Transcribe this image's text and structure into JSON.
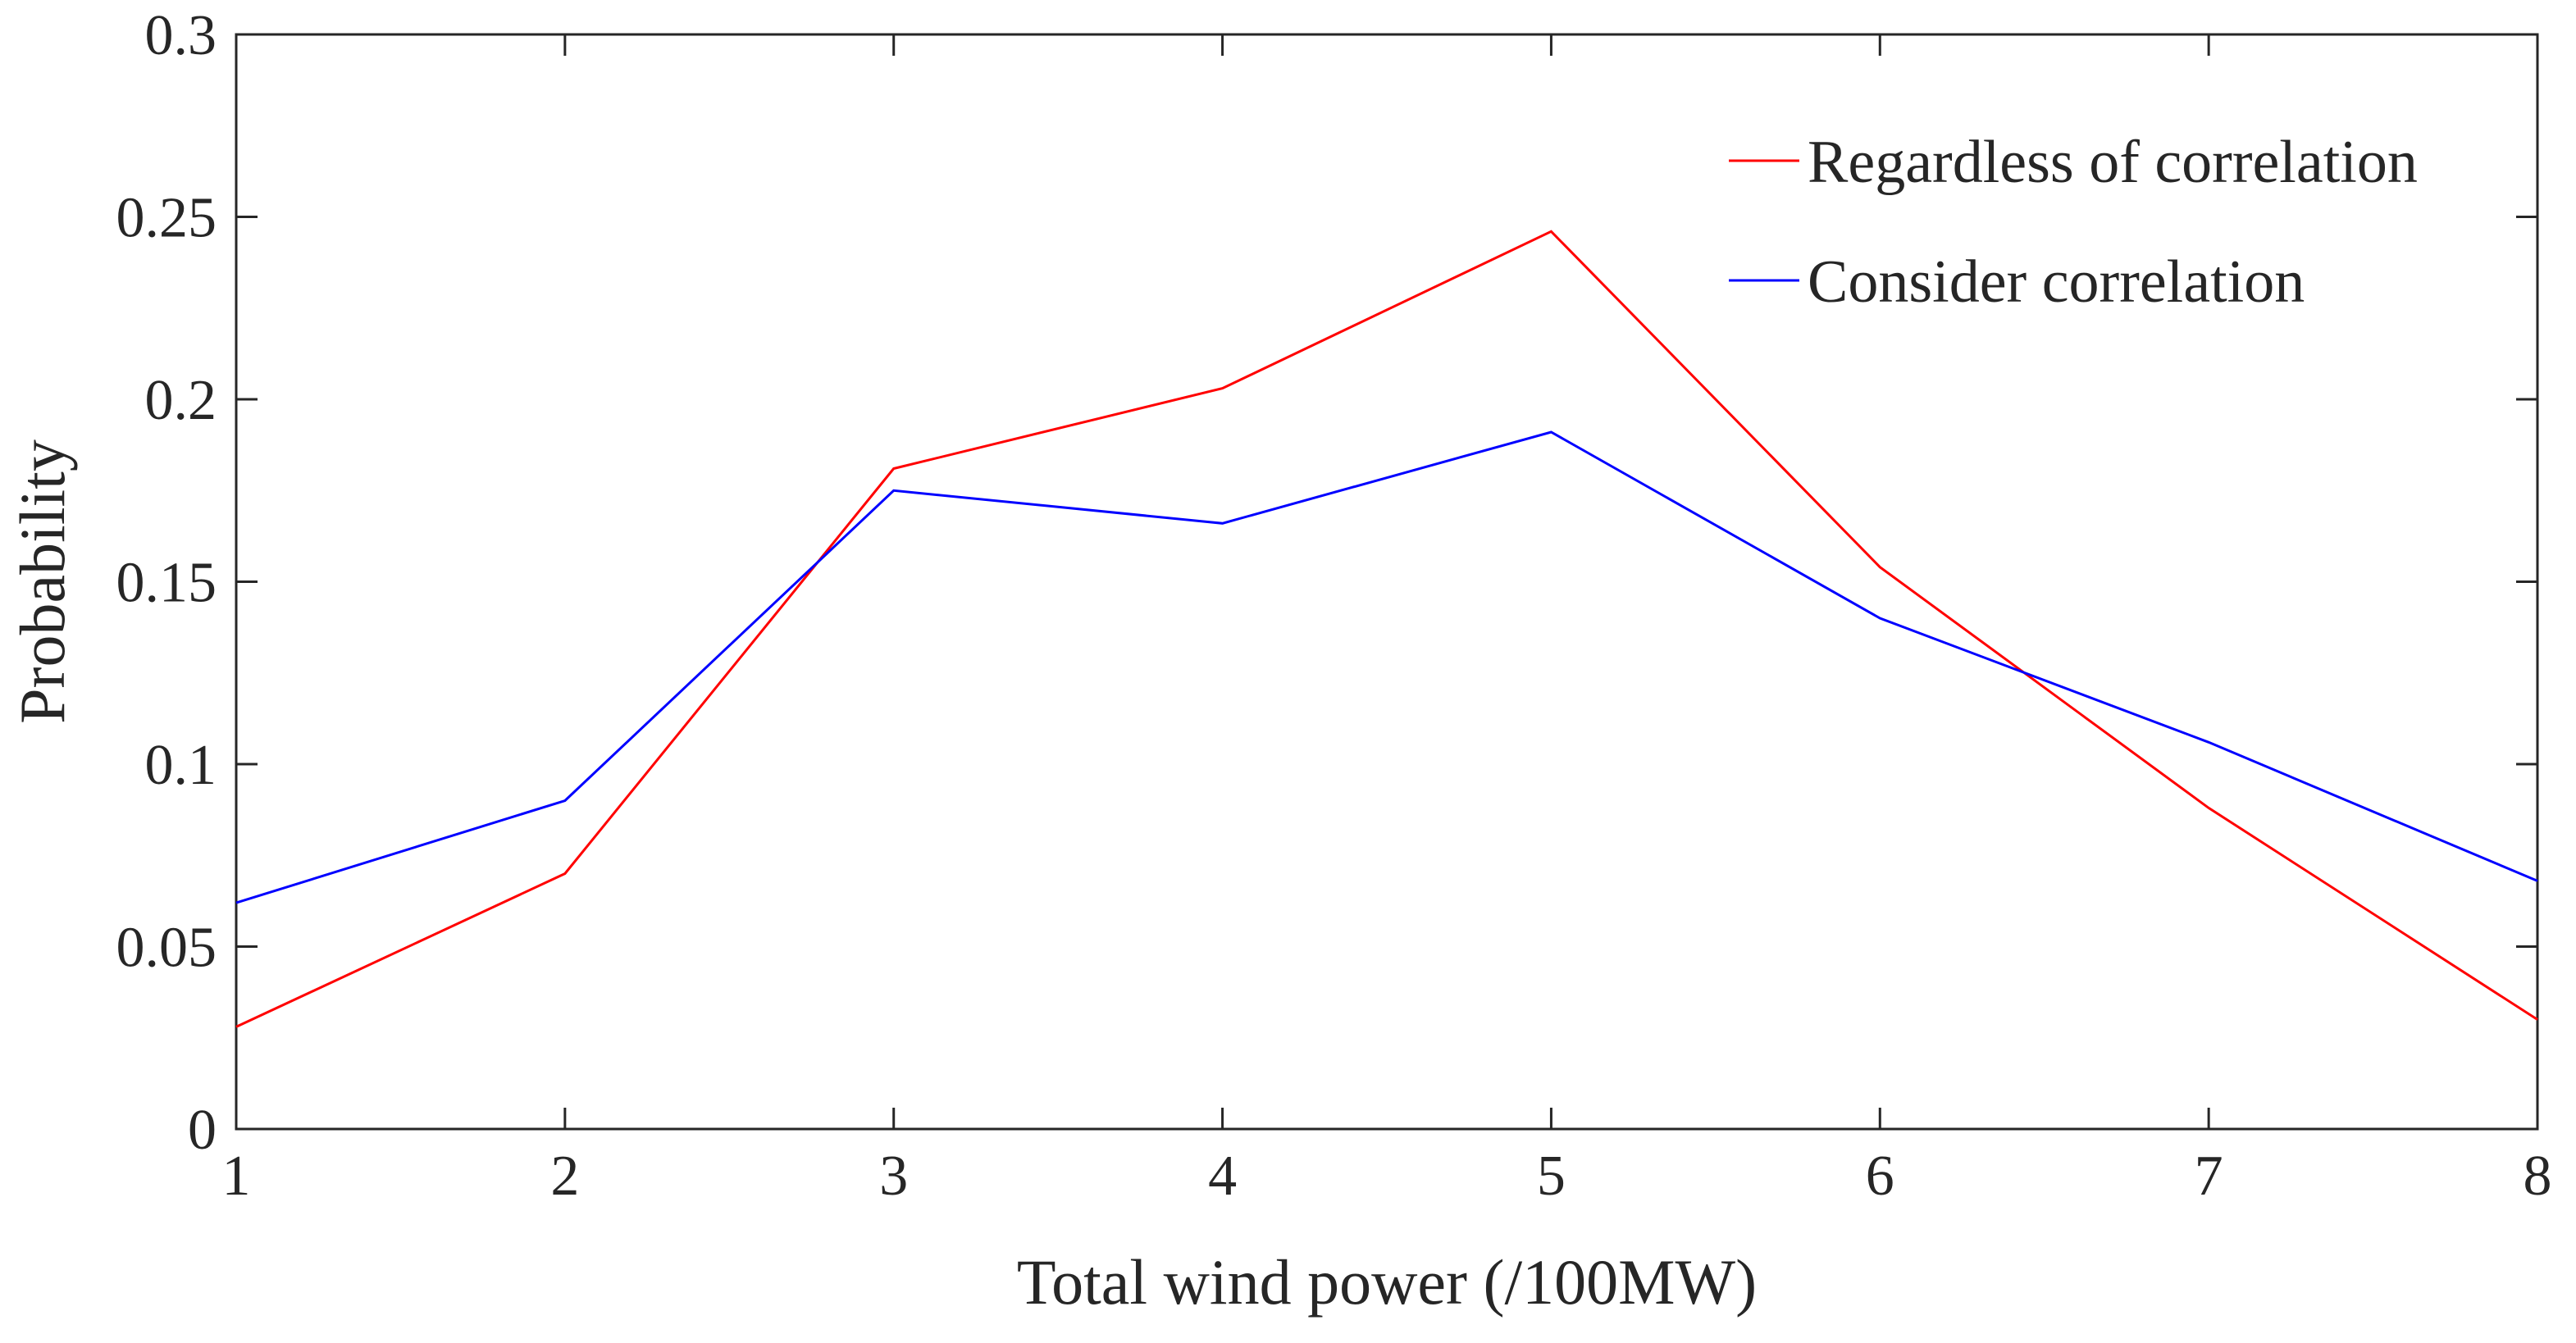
{
  "chart_data": {
    "type": "line",
    "title": "",
    "xlabel": "Total wind power (/100MW)",
    "ylabel": "Probability",
    "x": [
      1,
      2,
      3,
      4,
      5,
      6,
      7,
      8
    ],
    "xlim": [
      1,
      8
    ],
    "ylim": [
      0,
      0.3
    ],
    "xticks": [
      1,
      2,
      3,
      4,
      5,
      6,
      7,
      8
    ],
    "xtick_labels": [
      "1",
      "2",
      "3",
      "4",
      "5",
      "6",
      "7",
      "8"
    ],
    "yticks": [
      0,
      0.05,
      0.1,
      0.15,
      0.2,
      0.25,
      0.3
    ],
    "ytick_labels": [
      "0",
      "0.05",
      "0.1",
      "0.15",
      "0.2",
      "0.25",
      "0.3"
    ],
    "grid": false,
    "legend_position": "top-right",
    "series": [
      {
        "name": "Regardless of correlation",
        "color": "#ff0000",
        "values": [
          0.028,
          0.07,
          0.181,
          0.203,
          0.246,
          0.154,
          0.088,
          0.03
        ]
      },
      {
        "name": "Consider correlation",
        "color": "#0000ff",
        "values": [
          0.062,
          0.09,
          0.175,
          0.166,
          0.191,
          0.14,
          0.106,
          0.068
        ]
      }
    ]
  }
}
